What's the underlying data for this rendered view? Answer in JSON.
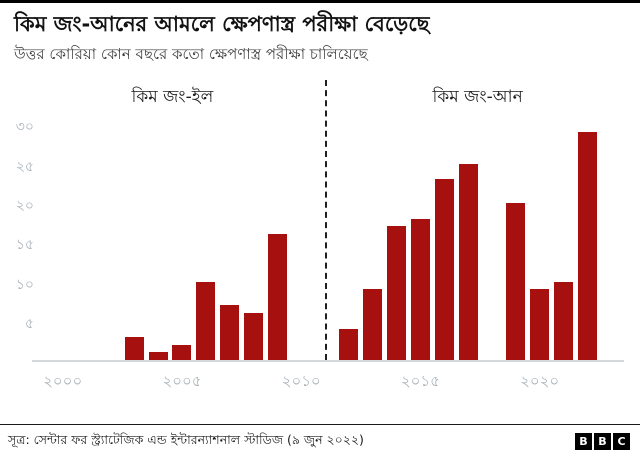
{
  "header": {
    "title": "কিম জং-আনের আমলে ক্ষেপণাস্ত্র পরীক্ষা বেড়েছে",
    "subtitle": "উত্তর কোরিয়া কোন বছরে কতো ক্ষেপণাস্ত্র পরীক্ষা চালিয়েছে"
  },
  "chart_data": {
    "type": "bar",
    "title": "কিম জং-আনের আমলে ক্ষেপণাস্ত্র পরীক্ষা বেড়েছে",
    "xlabel": "",
    "ylabel": "",
    "xlim": [
      1999.3,
      2023.2
    ],
    "ylim": [
      0,
      31
    ],
    "grid": false,
    "bar_color": "#a6100f",
    "divider_year": 2011,
    "era_labels": [
      {
        "label": "কিম জং-ইল",
        "center_year": 2004.6
      },
      {
        "label": "কিম জং-আন",
        "center_year": 2017.4
      }
    ],
    "x_ticks": [
      {
        "year": 2000,
        "label": "২০০০"
      },
      {
        "year": 2005,
        "label": "২০০৫"
      },
      {
        "year": 2010,
        "label": "২০১০"
      },
      {
        "year": 2015,
        "label": "২০১৫"
      },
      {
        "year": 2020,
        "label": "২০২০"
      }
    ],
    "y_ticks": [
      {
        "value": 5,
        "label": "৫"
      },
      {
        "value": 10,
        "label": "১০"
      },
      {
        "value": 15,
        "label": "১৫"
      },
      {
        "value": 20,
        "label": "২০"
      },
      {
        "value": 25,
        "label": "২৫"
      },
      {
        "value": 30,
        "label": "৩০"
      }
    ],
    "bars": [
      {
        "year": 2003,
        "value": 3
      },
      {
        "year": 2004,
        "value": 1
      },
      {
        "year": 2005,
        "value": 2
      },
      {
        "year": 2006,
        "value": 10
      },
      {
        "year": 2007,
        "value": 7
      },
      {
        "year": 2008,
        "value": 6
      },
      {
        "year": 2009,
        "value": 16
      },
      {
        "year": 2012,
        "value": 4
      },
      {
        "year": 2013,
        "value": 9
      },
      {
        "year": 2014,
        "value": 17
      },
      {
        "year": 2015,
        "value": 18
      },
      {
        "year": 2016,
        "value": 23
      },
      {
        "year": 2017,
        "value": 25
      },
      {
        "year": 2019,
        "value": 20
      },
      {
        "year": 2020,
        "value": 9
      },
      {
        "year": 2021,
        "value": 10
      },
      {
        "year": 2022,
        "value": 29
      }
    ]
  },
  "footer": {
    "source": "সূত্র: সেন্টার ফর স্ট্র্যাটেজিক এন্ড ইন্টারন্যাশনাল স্টাডিজ (৯ জুন ২০২২)",
    "logo_letters": [
      "B",
      "B",
      "C"
    ]
  }
}
